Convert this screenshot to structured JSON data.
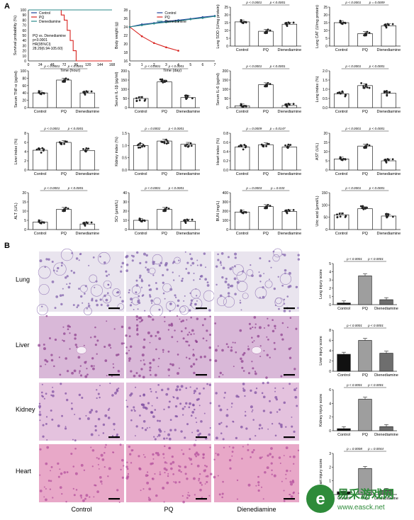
{
  "panel_labels": {
    "a": "A",
    "b": "B"
  },
  "groups": [
    "Control",
    "PQ",
    "Dienediamine"
  ],
  "colors": {
    "control": "#1f3f9a",
    "pq": "#d8231f",
    "dien": "#2a8a8a",
    "bar_control": "#111111",
    "bar_pq": "#9e9e9e",
    "bar_dien": "#6e6e6e"
  },
  "survival": {
    "ylabel": "Survival probability (%)",
    "xlabel": "Time (hour)",
    "xticks": [
      "0",
      "24",
      "48",
      "72",
      "96",
      "120",
      "144",
      "168"
    ],
    "yticks": [
      "0",
      "10",
      "20",
      "30",
      "40",
      "50",
      "60",
      "70",
      "80",
      "90",
      "100"
    ],
    "legend": [
      "Control",
      "PQ",
      "Dienediamine"
    ],
    "stats_lines": [
      "PQ vs. Dienediamine",
      "p<0.0001",
      "HR(95%CI)",
      "28.29(6.94-105.60)"
    ]
  },
  "bodyweight": {
    "ylabel": "Body weight (g)",
    "xlabel": "Time (day)",
    "xticks": [
      "0",
      "1",
      "2",
      "3",
      "4",
      "5",
      "6",
      "7"
    ],
    "yticks": [
      "16",
      "18",
      "20",
      "22",
      "24",
      "26",
      "28"
    ],
    "legend": [
      "Control",
      "PQ",
      "Dienediamine"
    ]
  },
  "b_row_labels": [
    "Lung",
    "Liver",
    "Kidney",
    "Heart"
  ],
  "b_col_labels": [
    "Control",
    "PQ",
    "Dienediamine"
  ],
  "watermark": {
    "line1": "易采游戏网",
    "line2": "www.easck.net"
  },
  "chart_data": [
    {
      "id": "survival",
      "type": "line",
      "title": "",
      "xlabel": "Time (hour)",
      "ylabel": "Survival probability (%)",
      "xlim": [
        0,
        168
      ],
      "ylim": [
        0,
        100
      ],
      "series": [
        {
          "name": "Control",
          "x": [
            0,
            168
          ],
          "y": [
            100,
            100
          ]
        },
        {
          "name": "PQ",
          "x": [
            0,
            60,
            66,
            72,
            78,
            84,
            90,
            96,
            168
          ],
          "y": [
            100,
            100,
            90,
            80,
            60,
            40,
            20,
            0,
            0
          ]
        },
        {
          "name": "Dienediamine",
          "x": [
            0,
            168
          ],
          "y": [
            100,
            100
          ]
        }
      ]
    },
    {
      "id": "bodyweight",
      "type": "line",
      "xlabel": "Time (day)",
      "ylabel": "Body weight (g)",
      "xlim": [
        0,
        7
      ],
      "ylim": [
        16,
        28
      ],
      "series": [
        {
          "name": "Control",
          "x": [
            0,
            1,
            2,
            3,
            4,
            5,
            6,
            7
          ],
          "y": [
            24,
            24.6,
            24.9,
            25.3,
            25.6,
            25.9,
            26.3,
            26.6
          ]
        },
        {
          "name": "PQ",
          "x": [
            0,
            1,
            2,
            3,
            4
          ],
          "y": [
            24,
            21.8,
            20.2,
            19.2,
            18.4
          ]
        },
        {
          "name": "Dienediamine",
          "x": [
            0,
            1,
            2,
            3,
            4,
            5,
            6,
            7
          ],
          "y": [
            24,
            24.4,
            24.8,
            25.1,
            25.4,
            25.8,
            26.1,
            26.5
          ]
        }
      ]
    },
    {
      "id": "sod",
      "type": "bar",
      "ylabel": "Lung SOD (U/mg protein)",
      "categories": [
        "Control",
        "PQ",
        "Dienediamine"
      ],
      "values": [
        15.5,
        9.5,
        14.0
      ],
      "ylim": [
        0,
        25
      ],
      "yticks": [
        "0",
        "5",
        "10",
        "15",
        "20",
        "25"
      ],
      "pvals": [
        "p < 0.0001",
        "p < 0.0001"
      ]
    },
    {
      "id": "cat",
      "type": "bar",
      "ylabel": "Lung CAT (U/mg protein)",
      "categories": [
        "Control",
        "PQ",
        "Dienediamine"
      ],
      "values": [
        15.0,
        8.0,
        13.0
      ],
      "ylim": [
        0,
        25
      ],
      "yticks": [
        "0",
        "5",
        "10",
        "15",
        "20",
        "25"
      ],
      "pvals": [
        "p < 0.0001",
        "p = 0.0009"
      ]
    },
    {
      "id": "tnf",
      "type": "bar",
      "ylabel": "Serum TNF-α (pg/ml)",
      "categories": [
        "Control",
        "PQ",
        "Dienediamine"
      ],
      "values": [
        40,
        75,
        40
      ],
      "ylim": [
        0,
        100
      ],
      "yticks": [
        "0",
        "20",
        "40",
        "60",
        "80",
        "100"
      ],
      "pvals": [
        "p < 0.0001",
        "p < 0.0001"
      ]
    },
    {
      "id": "il1b",
      "type": "bar",
      "ylabel": "Serum IL-1β (pg/ml)",
      "categories": [
        "Control",
        "PQ",
        "Dienediamine"
      ],
      "values": [
        50,
        140,
        55
      ],
      "ylim": [
        0,
        200
      ],
      "yticks": [
        "0",
        "50",
        "100",
        "150",
        "200"
      ],
      "pvals": [
        "p < 0.0001",
        "p < 0.0001"
      ]
    },
    {
      "id": "il6",
      "type": "bar",
      "ylabel": "Serum IL-6 (pg/ml)",
      "categories": [
        "Control",
        "PQ",
        "Dienediamine"
      ],
      "values": [
        10,
        125,
        12
      ],
      "ylim": [
        0,
        200
      ],
      "yticks": [
        "0",
        "50",
        "100",
        "150",
        "200"
      ],
      "pvals": [
        "p < 0.0001",
        "p < 0.0001"
      ]
    },
    {
      "id": "lungidx",
      "type": "bar",
      "ylabel": "Lung index (%)",
      "categories": [
        "Control",
        "PQ",
        "Dienediamine"
      ],
      "values": [
        0.75,
        1.2,
        0.78
      ],
      "ylim": [
        0,
        2.0
      ],
      "yticks": [
        "0.0",
        "0.5",
        "1.0",
        "1.5",
        "2.0"
      ],
      "pvals": [
        "p < 0.0001",
        "p < 0.0001"
      ]
    },
    {
      "id": "liveridx",
      "type": "bar",
      "ylabel": "Liver index (%)",
      "categories": [
        "Control",
        "PQ",
        "Dienediamine"
      ],
      "values": [
        4.3,
        6.0,
        4.2
      ],
      "ylim": [
        0,
        8
      ],
      "yticks": [
        "0",
        "2",
        "4",
        "6",
        "8"
      ],
      "pvals": [
        "p < 0.0001",
        "p < 0.0001"
      ]
    },
    {
      "id": "kidneyidx",
      "type": "bar",
      "ylabel": "Kidney index (%)",
      "categories": [
        "Control",
        "PQ",
        "Dienediamine"
      ],
      "values": [
        1.0,
        1.18,
        1.05
      ],
      "ylim": [
        0,
        1.5
      ],
      "yticks": [
        "0.0",
        "0.5",
        "1.0",
        "1.5"
      ],
      "pvals": [
        "p = 0.0002",
        "p < 0.0001"
      ]
    },
    {
      "id": "heartidx",
      "type": "bar",
      "ylabel": "Heart index (%)",
      "categories": [
        "Control",
        "PQ",
        "Dienediamine"
      ],
      "values": [
        0.5,
        0.55,
        0.5
      ],
      "ylim": [
        0,
        0.8
      ],
      "yticks": [
        "0.0",
        "0.2",
        "0.4",
        "0.6",
        "0.8"
      ],
      "pvals": [
        "p = 0.0009",
        "p = 0.0147"
      ]
    },
    {
      "id": "ast",
      "type": "bar",
      "ylabel": "AST (U/L)",
      "categories": [
        "Control",
        "PQ",
        "Dienediamine"
      ],
      "values": [
        6,
        13,
        5
      ],
      "ylim": [
        0,
        20
      ],
      "yticks": [
        "0",
        "5",
        "10",
        "15",
        "20"
      ],
      "pvals": [
        "p < 0.0001",
        "p < 0.0001"
      ]
    },
    {
      "id": "alt",
      "type": "bar",
      "ylabel": "ALT (U/L)",
      "categories": [
        "Control",
        "PQ",
        "Dienediamine"
      ],
      "values": [
        4,
        11,
        3
      ],
      "ylim": [
        0,
        20
      ],
      "yticks": [
        "0",
        "5",
        "10",
        "15",
        "20"
      ],
      "pvals": [
        "p < 0.0001",
        "p < 0.0001"
      ]
    },
    {
      "id": "scr",
      "type": "bar",
      "ylabel": "SCr (μmol/L)",
      "categories": [
        "Control",
        "PQ",
        "Dienediamine"
      ],
      "values": [
        10,
        22,
        9
      ],
      "ylim": [
        0,
        40
      ],
      "yticks": [
        "0",
        "10",
        "20",
        "30",
        "40"
      ],
      "pvals": [
        "p < 0.0001",
        "p < 0.0001"
      ]
    },
    {
      "id": "bun",
      "type": "bar",
      "ylabel": "BUN (mg/L)",
      "categories": [
        "Control",
        "PQ",
        "Dienediamine"
      ],
      "values": [
        190,
        250,
        195
      ],
      "ylim": [
        0,
        400
      ],
      "yticks": [
        "0",
        "100",
        "200",
        "300",
        "400"
      ],
      "pvals": [
        "p = 0.0003",
        "p = 0.033"
      ]
    },
    {
      "id": "uric",
      "type": "bar",
      "ylabel": "Uric acid (μmol/L)",
      "categories": [
        "Control",
        "PQ",
        "Dienediamine"
      ],
      "values": [
        60,
        85,
        55
      ],
      "ylim": [
        0,
        150
      ],
      "yticks": [
        "0",
        "50",
        "100",
        "150"
      ],
      "pvals": [
        "p < 0.0001",
        "p < 0.0001"
      ]
    },
    {
      "id": "lungscore",
      "type": "bar",
      "ylabel": "Lung injury score",
      "categories": [
        "Control",
        "PQ",
        "Dienediamine"
      ],
      "values": [
        0.2,
        3.5,
        0.6
      ],
      "ylim": [
        0,
        5
      ],
      "yticks": [
        "0",
        "1",
        "2",
        "3",
        "4",
        "5"
      ],
      "pvals": [
        "p < 0.0001",
        "p < 0.0001"
      ]
    },
    {
      "id": "liverscore",
      "type": "bar",
      "ylabel": "Liver injury score",
      "categories": [
        "Control",
        "PQ",
        "Dienediamine"
      ],
      "values": [
        3.3,
        6.0,
        3.5
      ],
      "ylim": [
        0,
        8
      ],
      "yticks": [
        "0",
        "2",
        "4",
        "6",
        "8"
      ],
      "pvals": [
        "p < 0.0001",
        "p < 0.0001"
      ]
    },
    {
      "id": "kidneyscore",
      "type": "bar",
      "ylabel": "Kidney injury score",
      "categories": [
        "Control",
        "PQ",
        "Dienediamine"
      ],
      "values": [
        0.3,
        4.6,
        0.6
      ],
      "ylim": [
        0,
        6
      ],
      "yticks": [
        "0",
        "2",
        "4",
        "6"
      ],
      "pvals": [
        "p < 0.0001",
        "p < 0.0001"
      ]
    },
    {
      "id": "heartscore",
      "type": "bar",
      "ylabel": "Heart injury score",
      "categories": [
        "Control",
        "PQ",
        "Dienediamine"
      ],
      "values": [
        0.2,
        1.9,
        0.3
      ],
      "ylim": [
        0,
        3
      ],
      "yticks": [
        "0",
        "1",
        "2",
        "3"
      ],
      "pvals": [
        "p = 0.0008",
        "p = 0.0044"
      ]
    }
  ]
}
